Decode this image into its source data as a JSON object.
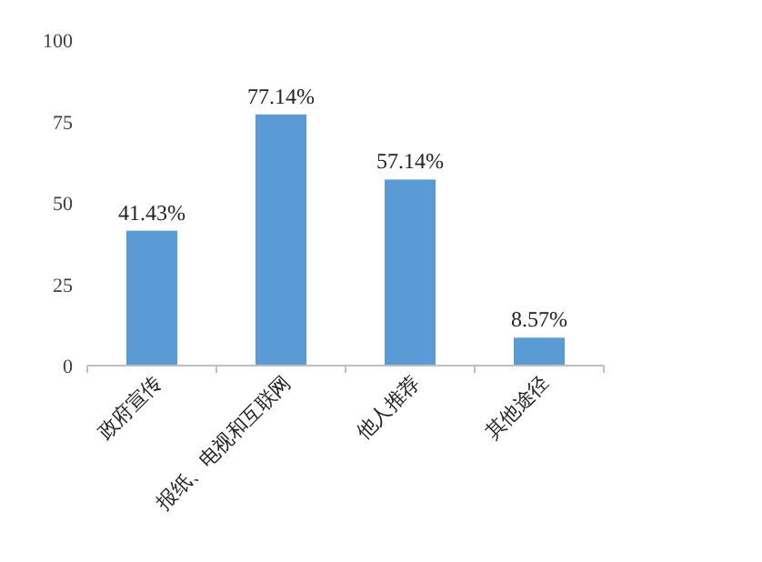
{
  "chart_data": {
    "type": "bar",
    "categories": [
      "政府宣传",
      "报纸、电视和互联网",
      "他人推荐",
      "其他途径"
    ],
    "values": [
      41.43,
      77.14,
      57.14,
      8.57
    ],
    "value_labels": [
      "41.43%",
      "77.14%",
      "57.14%",
      "8.57%"
    ],
    "color": "#5b9bd5",
    "ylim": [
      0,
      100
    ],
    "yticks": [
      0,
      25,
      50,
      75,
      100
    ],
    "grid": false
  }
}
